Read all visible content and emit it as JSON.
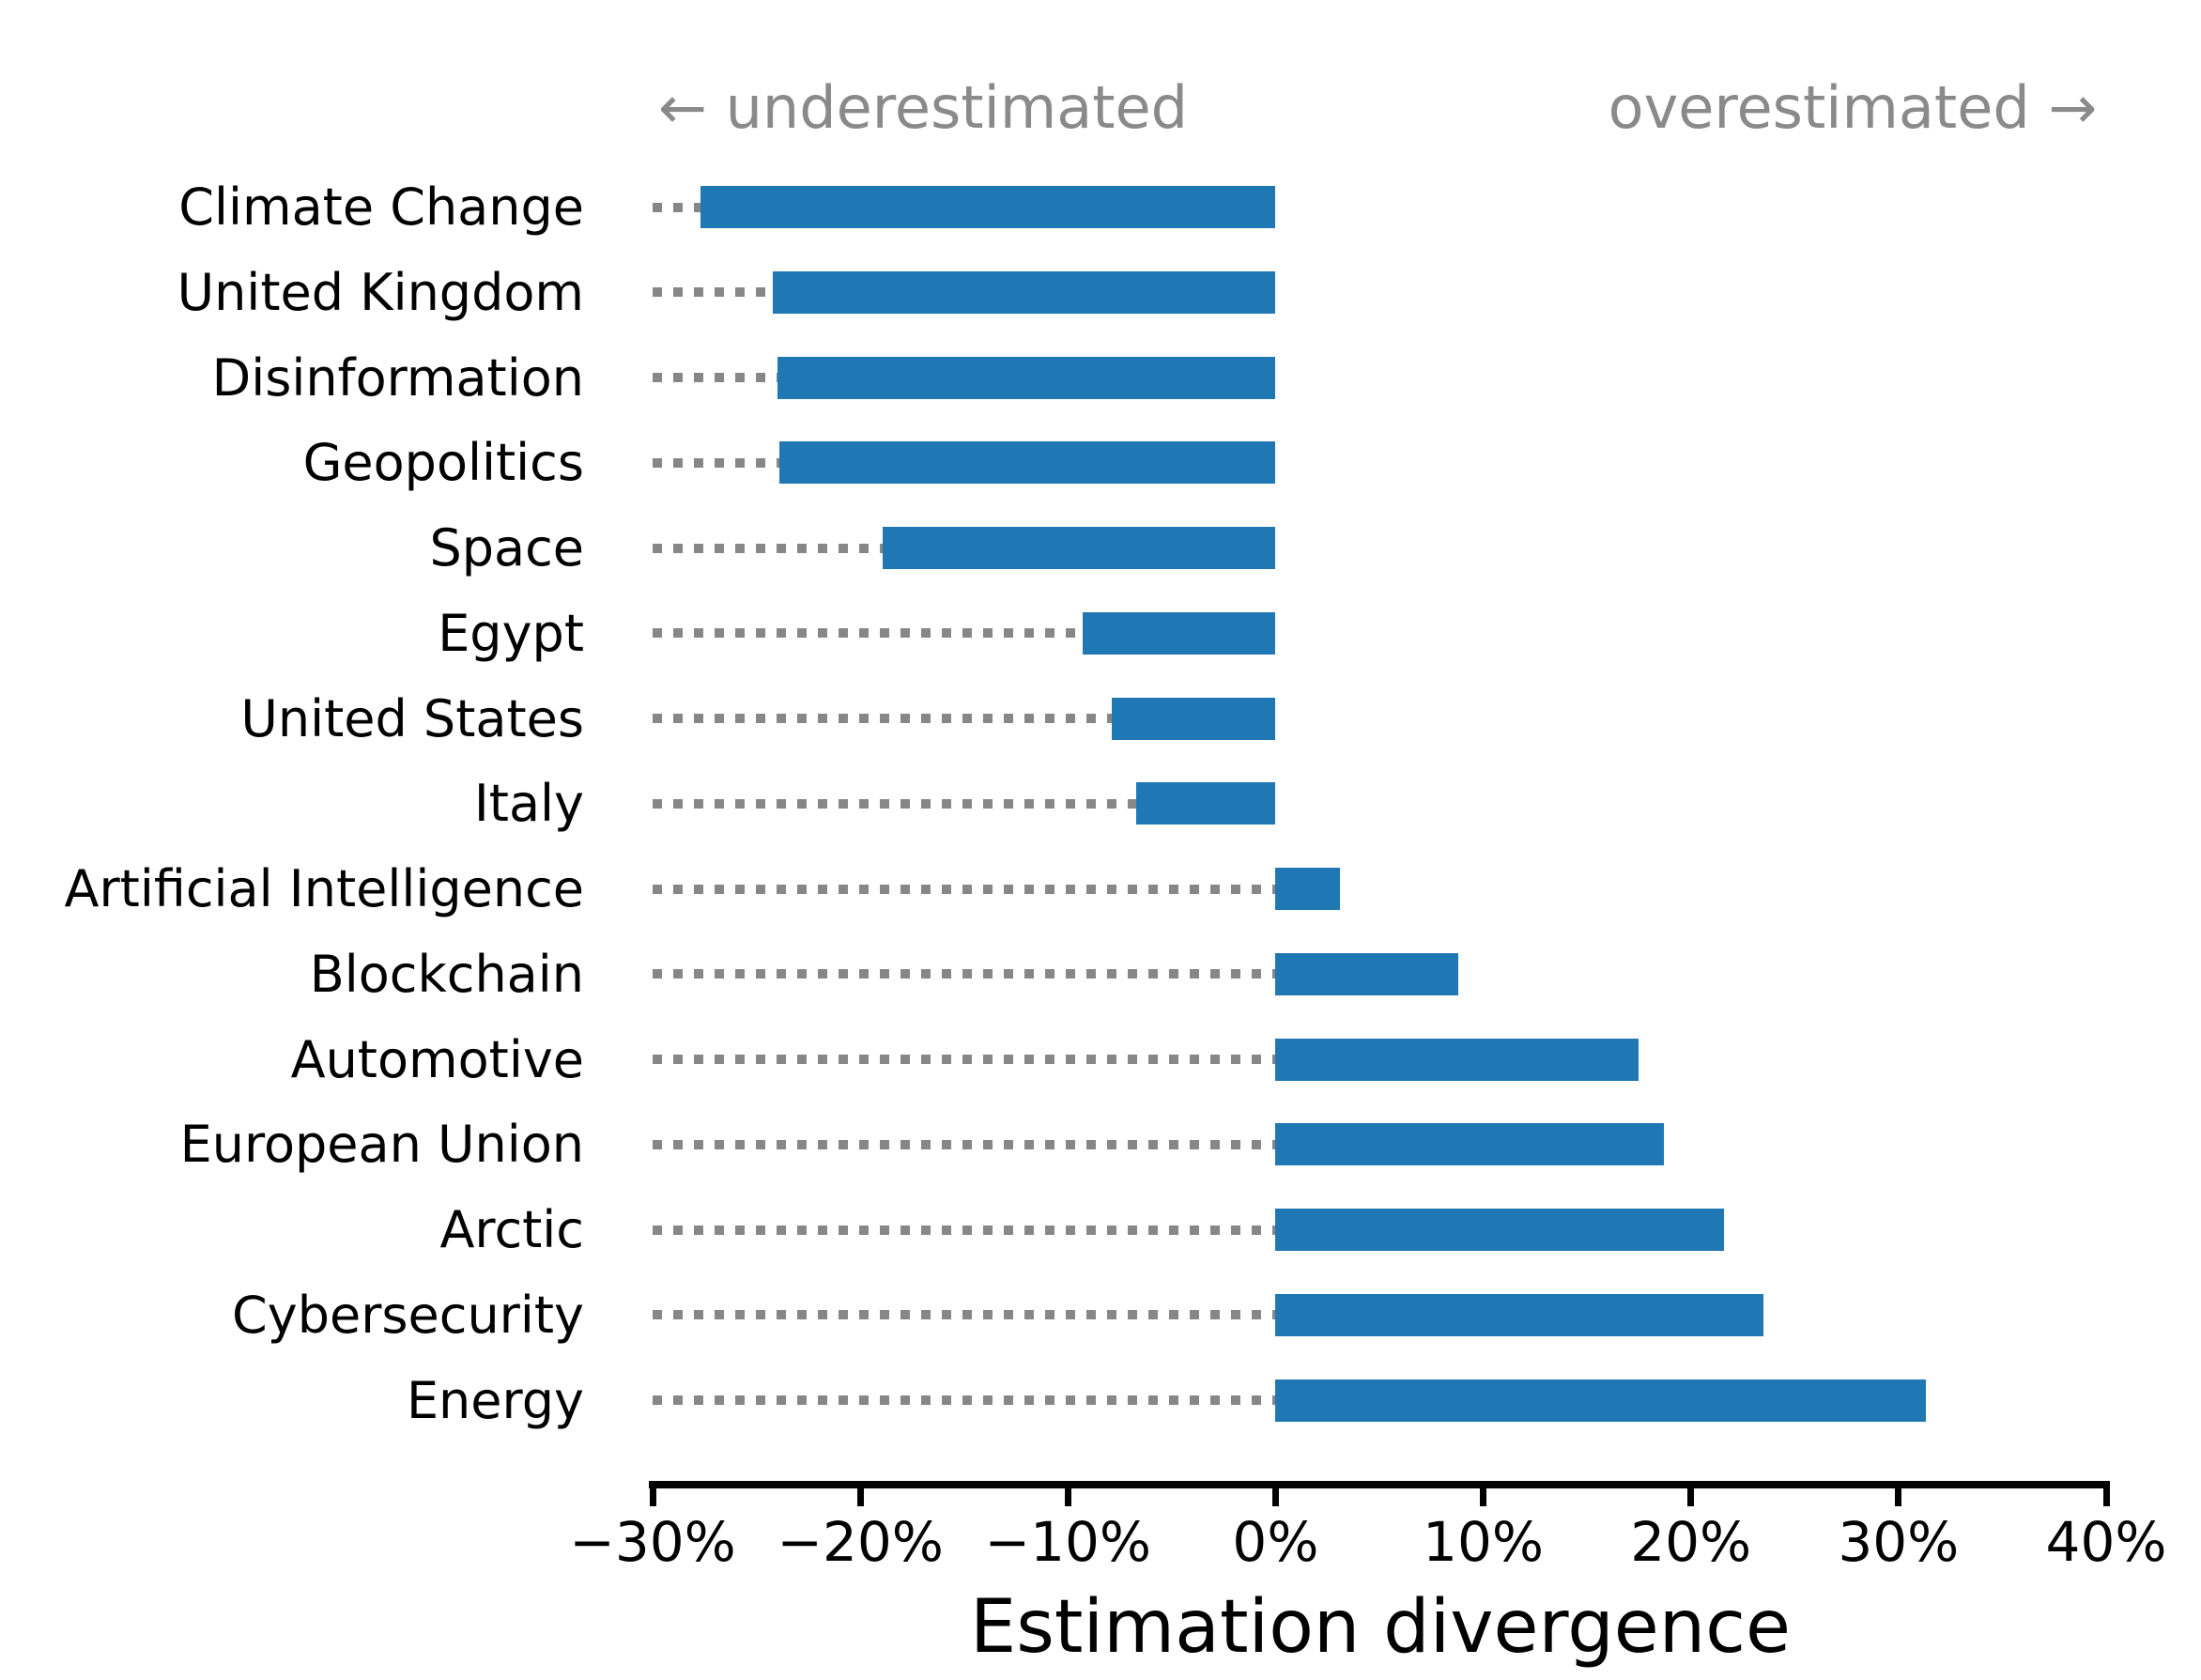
{
  "chart_data": {
    "type": "bar",
    "orientation": "horizontal",
    "xlabel": "Estimation divergence",
    "categories": [
      "Climate Change",
      "United Kingdom",
      "Disinformation",
      "Geopolitics",
      "Space",
      "Egypt",
      "United States",
      "Italy",
      "Artificial Intelligence",
      "Blockchain",
      "Automotive",
      "European Union",
      "Arctic",
      "Cybersecurity",
      "Energy"
    ],
    "values": [
      -27.7,
      -24.2,
      -24.0,
      -23.9,
      -18.9,
      -9.3,
      -7.9,
      -6.7,
      3.1,
      8.8,
      17.5,
      18.7,
      21.6,
      23.5,
      31.3
    ],
    "value_unit": "%",
    "xlim": [
      -30,
      40
    ],
    "xticks": [
      {
        "value": -30,
        "label": "−30%"
      },
      {
        "value": -20,
        "label": "−20%"
      },
      {
        "value": -10,
        "label": "−10%"
      },
      {
        "value": 0,
        "label": "0%"
      },
      {
        "value": 10,
        "label": "10%"
      },
      {
        "value": 20,
        "label": "20%"
      },
      {
        "value": 30,
        "label": "30%"
      },
      {
        "value": 40,
        "label": "40%"
      }
    ],
    "annotations": {
      "left": "← underestimated",
      "right": "overestimated →"
    },
    "grid": "off",
    "legend": "none",
    "colors": {
      "bar": "#1f77b4",
      "leader_dots": "#878787",
      "annotation_text": "#8a8a8a",
      "axis": "#000000",
      "label_text": "#000000",
      "background": "#ffffff"
    }
  }
}
